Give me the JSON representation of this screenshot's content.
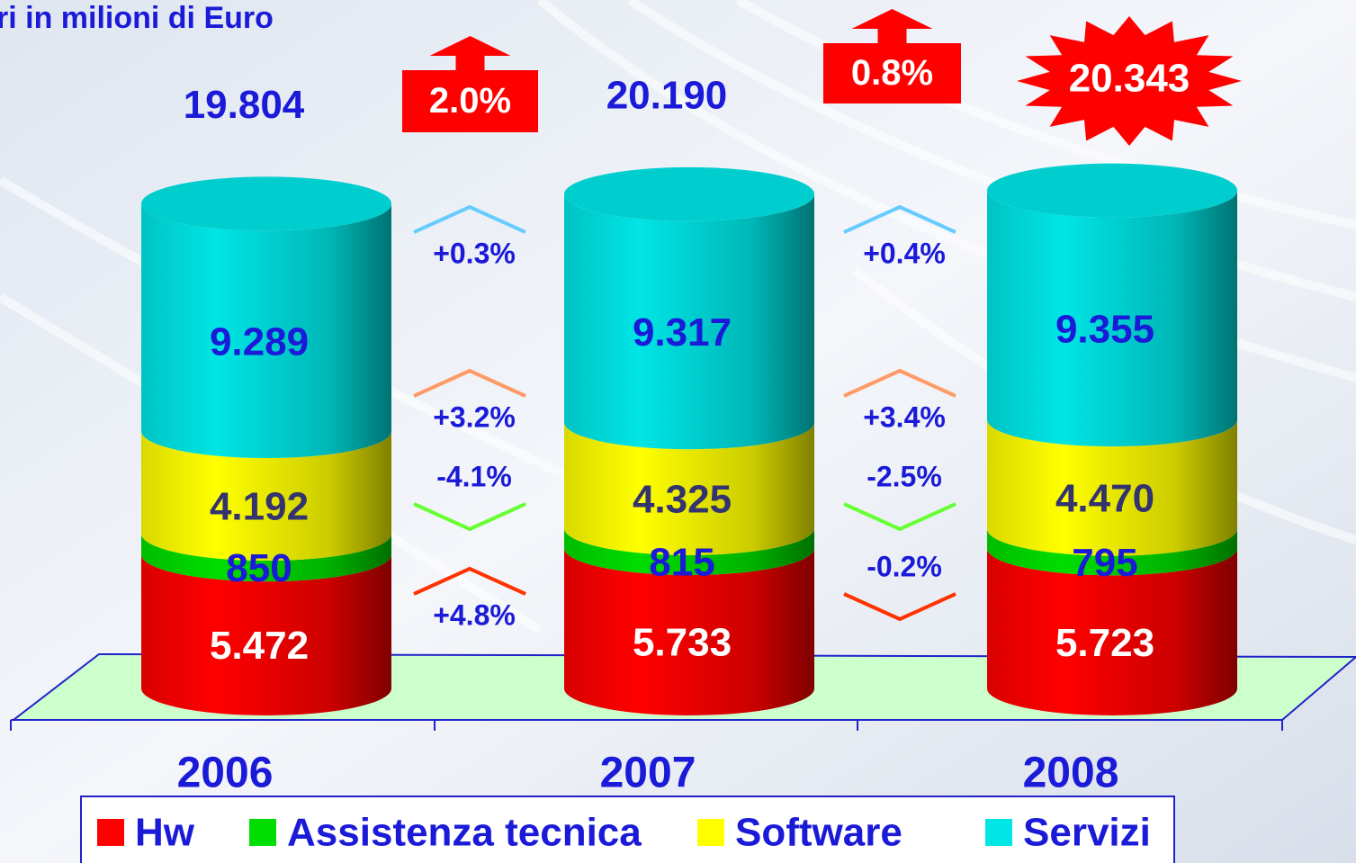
{
  "chart_data": {
    "type": "bar",
    "title": "ri in milioni di Euro",
    "categories": [
      "2006",
      "2007",
      "2008"
    ],
    "series": [
      {
        "name": "Hw",
        "color": "#ff0000",
        "values": [
          5472,
          5733,
          5723
        ],
        "value_labels": [
          "5.472",
          "5.733",
          "5.723"
        ],
        "change_values": [
          4.8,
          -0.2
        ],
        "change_labels": [
          "+4.8%",
          "-0.2%"
        ]
      },
      {
        "name": "Assistenza tecnica",
        "color": "#00dd00",
        "values": [
          850,
          815,
          795
        ],
        "value_labels": [
          "850",
          "815",
          "795"
        ],
        "change_values": [
          -4.1,
          -2.5
        ],
        "change_labels": [
          "-4.1%",
          "-2.5%"
        ]
      },
      {
        "name": "Software",
        "color": "#ffff00",
        "values": [
          4192,
          4325,
          4470
        ],
        "value_labels": [
          "4.192",
          "4.325",
          "4.470"
        ],
        "change_values": [
          3.2,
          3.4
        ],
        "change_labels": [
          "+3.2%",
          "+3.4%"
        ]
      },
      {
        "name": "Servizi",
        "color": "#00e5e5",
        "values": [
          9289,
          9317,
          9355
        ],
        "value_labels": [
          "9.289",
          "9.317",
          "9.355"
        ],
        "change_values": [
          0.3,
          0.4
        ],
        "change_labels": [
          "+0.3%",
          "+0.4%"
        ]
      }
    ],
    "totals": {
      "values": [
        19804,
        20190,
        20343
      ],
      "value_labels": [
        "19.804",
        "20.190",
        "20.343"
      ]
    },
    "growth": {
      "values": [
        2.0,
        0.8
      ],
      "value_labels": [
        "2.0%",
        "0.8%"
      ]
    }
  }
}
